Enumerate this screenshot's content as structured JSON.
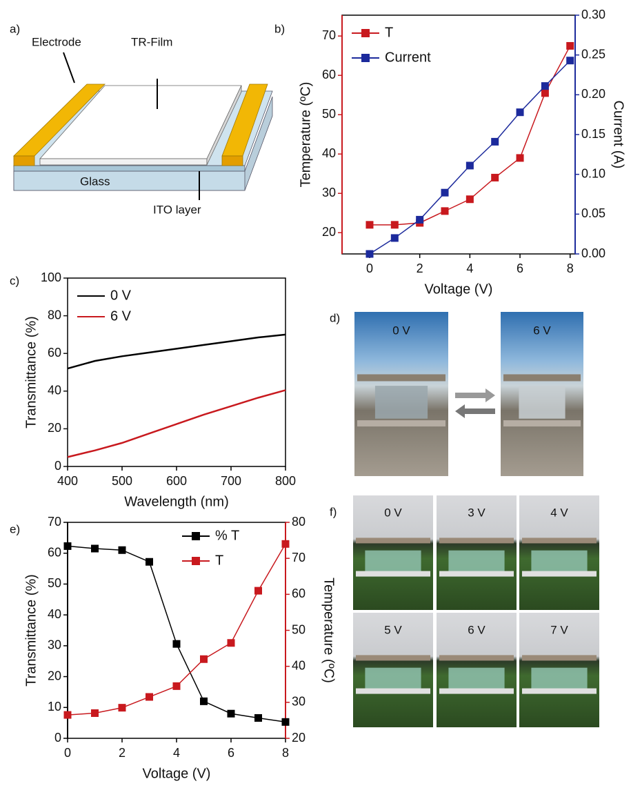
{
  "panels": [
    "a)",
    "b)",
    "c)",
    "d)",
    "e)",
    "f)"
  ],
  "diagram": {
    "labels": [
      "Electrode",
      "TR-Film",
      "Glass",
      "ITO layer"
    ]
  },
  "photos_d": [
    "0 V",
    "6 V"
  ],
  "photos_f": [
    "0 V",
    "3 V",
    "4 V",
    "5 V",
    "6 V",
    "7 V"
  ],
  "chart_data": [
    {
      "type": "line",
      "x": [
        0,
        1,
        2,
        3,
        4,
        5,
        6,
        7,
        8
      ],
      "xlim": [
        -1.1,
        8.2
      ],
      "xticks": [
        0,
        2,
        4,
        6,
        8
      ],
      "ylim": [
        14.6,
        75.3
      ],
      "yticks": [
        20,
        30,
        40,
        50,
        60,
        70
      ],
      "y2lim": [
        0,
        0.3
      ],
      "y2ticks": [
        {
          "value": 0,
          "label": "0.00"
        },
        {
          "value": 0.05,
          "label": "0.05"
        },
        {
          "value": 0.1,
          "label": "0.10"
        },
        0.15,
        {
          "value": 0.2,
          "label": "0.20"
        },
        0.25,
        {
          "value": 0.3,
          "label": "0.30"
        }
      ],
      "xlabel": "Voltage (V)",
      "ylabel": "Temperature (ºC)",
      "y2label": "Current (A)",
      "markers": true,
      "legend": "upper left",
      "y_color": "#c8191e",
      "y2_color": "#1c2a9c",
      "series": [
        {
          "name": "T",
          "color": "#c8191e",
          "values": [
            22,
            22,
            22.5,
            25.5,
            28.5,
            34,
            39,
            55.5,
            67.5
          ]
        },
        {
          "name": "Current",
          "color": "#1c2a9c",
          "axis": "y2",
          "values": [
            0,
            0.02,
            0.043,
            0.077,
            0.111,
            0.141,
            0.178,
            0.211,
            0.243
          ]
        }
      ]
    },
    {
      "type": "line",
      "x": [
        400,
        450,
        500,
        550,
        600,
        650,
        700,
        750,
        800
      ],
      "xlim": [
        400,
        800
      ],
      "xticks": [
        400,
        500,
        600,
        700,
        800
      ],
      "ylim": [
        0,
        100
      ],
      "yticks": [
        0,
        20,
        40,
        60,
        80,
        100
      ],
      "xlabel": "Wavelength (nm)",
      "ylabel": "Transmittance (%)",
      "markers": false,
      "legend": "upper left",
      "series": [
        {
          "name": "0 V",
          "color": "#000000",
          "values": [
            52,
            56,
            58.5,
            60.5,
            62.5,
            64.5,
            66.5,
            68.5,
            70
          ]
        },
        {
          "name": "6 V",
          "color": "#c8191e",
          "values": [
            5,
            8.5,
            12.5,
            17.5,
            22.5,
            27.5,
            32,
            36.5,
            40.5
          ]
        }
      ]
    },
    {
      "type": "line",
      "x": [
        0,
        1,
        2,
        3,
        4,
        5,
        6,
        7,
        8
      ],
      "xlim": [
        0,
        8
      ],
      "xticks": [
        0,
        2,
        4,
        6,
        8
      ],
      "ylim": [
        0,
        70
      ],
      "yticks": [
        0,
        10,
        20,
        30,
        40,
        50,
        60,
        70
      ],
      "y2lim": [
        20,
        80
      ],
      "y2ticks": [
        20,
        30,
        40,
        50,
        60,
        70,
        80
      ],
      "xlabel": "Voltage (V)",
      "ylabel": "Transmittance (%)",
      "y2label": "Temperature (ºC)",
      "markers": true,
      "legend": "upper right",
      "y_color": "#000000",
      "y2_color": "#c8191e",
      "series": [
        {
          "name": "% T",
          "color": "#000000",
          "values": [
            62.3,
            61.5,
            61,
            57.2,
            30.6,
            12,
            8,
            6.6,
            5.3
          ]
        },
        {
          "name": "T",
          "color": "#c8191e",
          "axis": "y2",
          "values": [
            26.5,
            27,
            28.5,
            31.5,
            34.5,
            42,
            46.5,
            61,
            74
          ]
        }
      ]
    }
  ]
}
